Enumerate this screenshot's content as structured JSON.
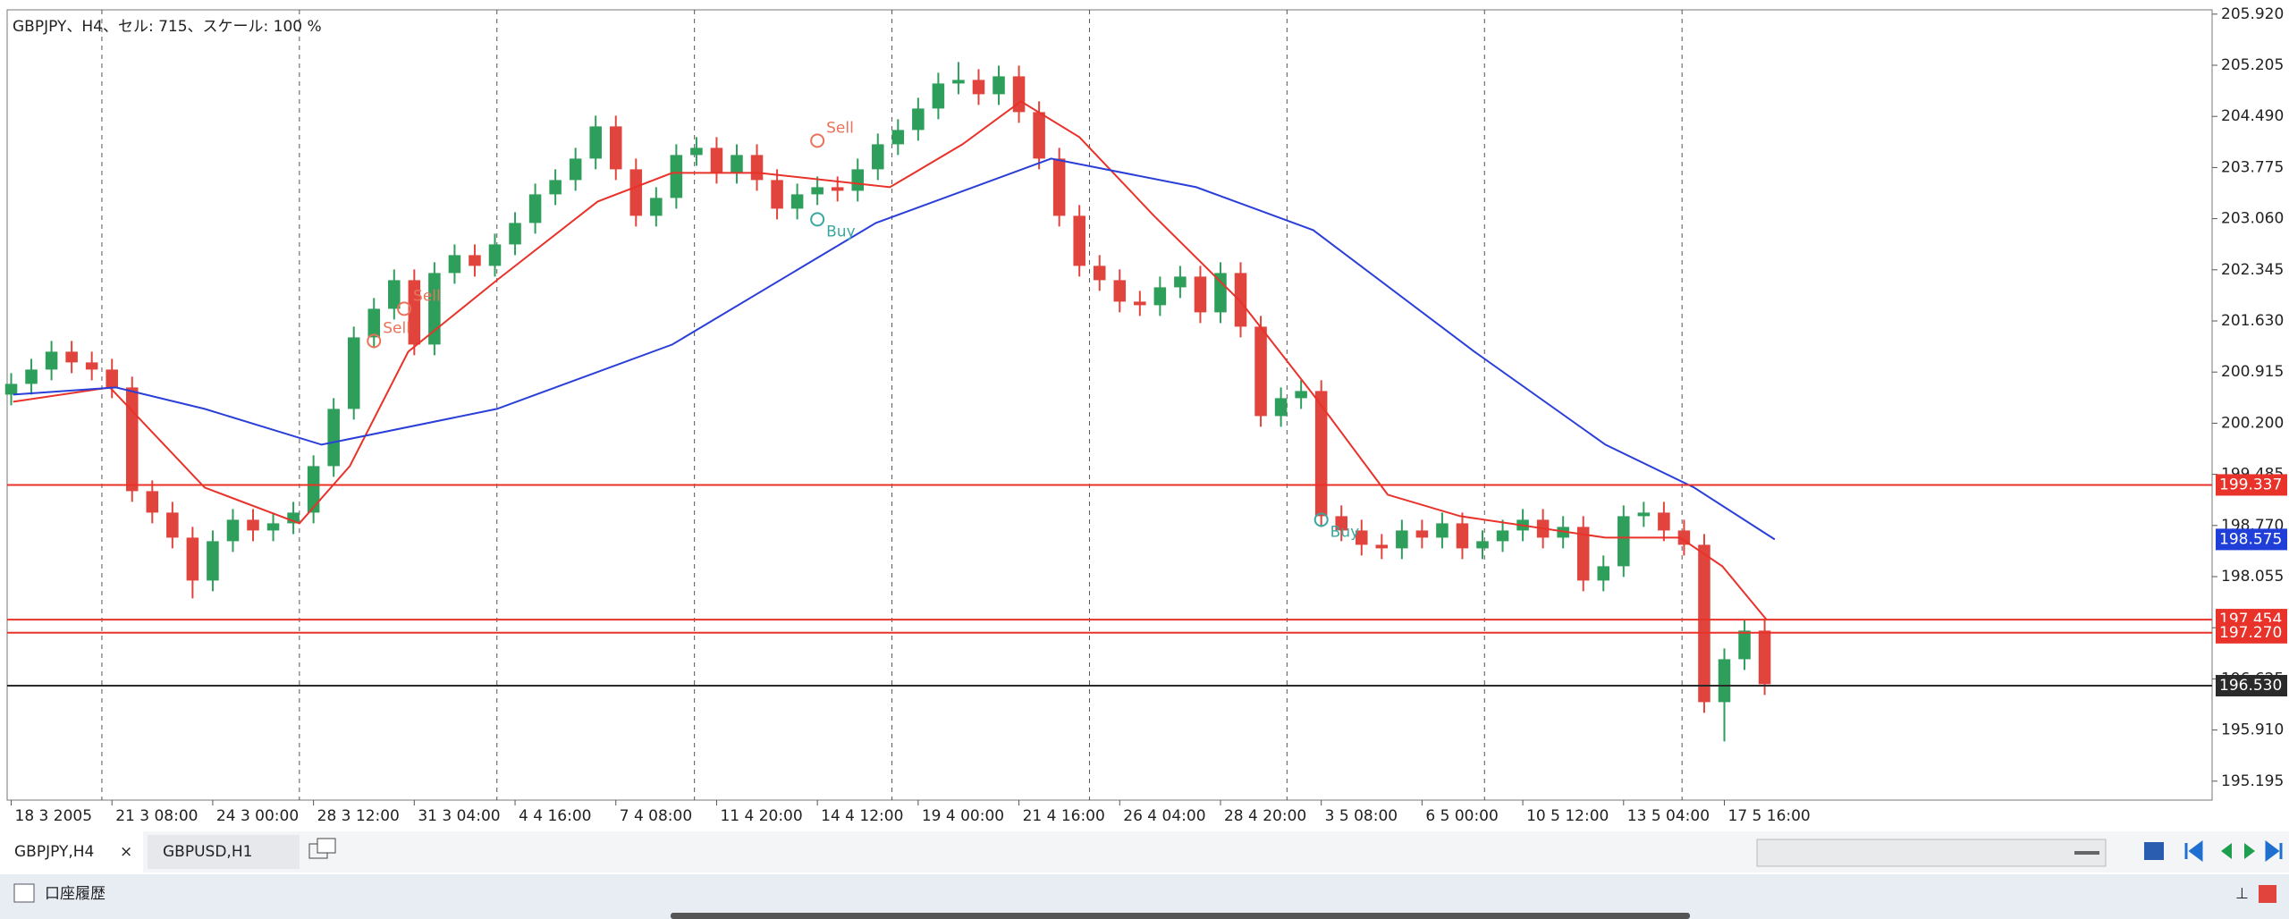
{
  "header": {
    "title": "GBPJPY、H4、セル: 715、スケール: 100 %"
  },
  "chart_data": {
    "type": "candlestick",
    "up_color": "#2e9e5b",
    "down_color": "#e0443c",
    "xlim": [
      -0.2,
      109.2
    ],
    "ylim": [
      194.93,
      205.98
    ],
    "yticks": [
      {
        "value": 205.92,
        "label": "205.920"
      },
      {
        "value": 205.205,
        "label": "205.205"
      },
      {
        "value": 204.49,
        "label": "204.490"
      },
      {
        "value": 203.775,
        "label": "203.775"
      },
      {
        "value": 203.06,
        "label": "203.060"
      },
      {
        "value": 202.345,
        "label": "202.345"
      },
      {
        "value": 201.63,
        "label": "201.630"
      },
      {
        "value": 200.915,
        "label": "200.915"
      },
      {
        "value": 200.2,
        "label": "200.200"
      },
      {
        "value": 199.485,
        "label": "199.485"
      },
      {
        "value": 198.77,
        "label": "198.770"
      },
      {
        "value": 198.055,
        "label": "198.055"
      },
      {
        "value": 197.34,
        "label": "197.340"
      },
      {
        "value": 196.625,
        "label": "196.625"
      },
      {
        "value": 195.91,
        "label": "195.910"
      },
      {
        "value": 195.195,
        "label": "195.195"
      }
    ],
    "xticks": [
      {
        "value": 0,
        "label": "18 3 2005"
      },
      {
        "value": 5,
        "label": "21 3 08:00"
      },
      {
        "value": 10,
        "label": "24 3 00:00"
      },
      {
        "value": 15,
        "label": "28 3 12:00"
      },
      {
        "value": 20,
        "label": "31 3 04:00"
      },
      {
        "value": 25,
        "label": "4 4 16:00"
      },
      {
        "value": 30,
        "label": "7 4 08:00"
      },
      {
        "value": 35,
        "label": "11 4 20:00"
      },
      {
        "value": 40,
        "label": "14 4 12:00"
      },
      {
        "value": 45,
        "label": "19 4 00:00"
      },
      {
        "value": 50,
        "label": "21 4 16:00"
      },
      {
        "value": 55,
        "label": "26 4 04:00"
      },
      {
        "value": 60,
        "label": "28 4 20:00"
      },
      {
        "value": 65,
        "label": "3 5 08:00"
      },
      {
        "value": 70,
        "label": "6 5 00:00"
      },
      {
        "value": 75,
        "label": "10 5 12:00"
      },
      {
        "value": 80,
        "label": "13 5 04:00"
      },
      {
        "value": 85,
        "label": "17 5 16:00"
      }
    ],
    "x_grid": [
      4.5,
      14.3,
      24.1,
      33.9,
      43.7,
      53.5,
      63.3,
      73.1,
      82.9
    ],
    "open": [
      200.6,
      200.75,
      200.95,
      201.2,
      201.05,
      200.95,
      200.7,
      199.25,
      198.95,
      198.6,
      198.0,
      198.55,
      198.85,
      198.7,
      198.8,
      198.95,
      199.6,
      200.4,
      201.4,
      201.8,
      202.2,
      201.3,
      202.3,
      202.55,
      202.4,
      202.7,
      203.0,
      203.4,
      203.6,
      203.9,
      204.35,
      203.75,
      203.1,
      203.35,
      203.95,
      204.05,
      203.7,
      203.95,
      203.6,
      203.2,
      203.4,
      203.5,
      203.45,
      203.75,
      204.1,
      204.3,
      204.6,
      204.95,
      205.0,
      204.8,
      205.05,
      204.55,
      203.9,
      203.1,
      202.4,
      202.2,
      201.9,
      201.85,
      202.1,
      202.25,
      201.75,
      202.3,
      201.55,
      200.3,
      200.55,
      200.65,
      198.9,
      198.7,
      198.5,
      198.45,
      198.7,
      198.6,
      198.8,
      198.45,
      198.55,
      198.7,
      198.85,
      198.6,
      198.75,
      198.0,
      198.2,
      198.9,
      198.95,
      198.7,
      198.5,
      196.3,
      196.9,
      197.3
    ],
    "high": [
      200.9,
      201.1,
      201.35,
      201.35,
      201.2,
      201.1,
      200.85,
      199.4,
      199.1,
      198.75,
      198.7,
      199.0,
      199.0,
      198.95,
      199.1,
      199.75,
      200.55,
      201.55,
      201.95,
      202.35,
      202.35,
      202.45,
      202.7,
      202.7,
      202.85,
      203.15,
      203.55,
      203.75,
      204.05,
      204.5,
      204.5,
      203.9,
      203.5,
      204.1,
      204.2,
      204.2,
      204.1,
      204.1,
      203.75,
      203.55,
      203.65,
      203.65,
      203.9,
      204.25,
      204.45,
      204.75,
      205.1,
      205.25,
      205.15,
      205.2,
      205.2,
      204.7,
      204.05,
      203.25,
      202.55,
      202.35,
      202.05,
      202.25,
      202.4,
      202.4,
      202.45,
      202.45,
      201.7,
      200.7,
      200.8,
      200.8,
      199.05,
      198.85,
      198.65,
      198.85,
      198.85,
      198.95,
      198.95,
      198.7,
      198.85,
      199.0,
      199.0,
      198.9,
      198.9,
      198.35,
      199.05,
      199.1,
      199.1,
      198.85,
      198.65,
      197.05,
      197.45,
      197.45
    ],
    "low": [
      200.45,
      200.6,
      200.8,
      200.9,
      200.8,
      200.55,
      199.1,
      198.8,
      198.45,
      197.75,
      197.85,
      198.4,
      198.55,
      198.55,
      198.65,
      198.8,
      199.45,
      200.25,
      201.25,
      201.65,
      201.15,
      201.15,
      202.15,
      202.25,
      202.25,
      202.55,
      202.85,
      203.25,
      203.45,
      203.75,
      203.6,
      202.95,
      202.95,
      203.2,
      203.8,
      203.55,
      203.55,
      203.45,
      203.05,
      203.05,
      203.25,
      203.3,
      203.3,
      203.6,
      203.95,
      204.15,
      204.45,
      204.8,
      204.65,
      204.65,
      204.4,
      203.75,
      202.95,
      202.25,
      202.05,
      201.75,
      201.7,
      201.7,
      201.95,
      201.6,
      201.6,
      201.4,
      200.15,
      200.15,
      200.4,
      198.75,
      198.55,
      198.35,
      198.3,
      198.3,
      198.45,
      198.45,
      198.3,
      198.3,
      198.4,
      198.55,
      198.45,
      198.45,
      197.85,
      197.85,
      198.05,
      198.75,
      198.55,
      198.35,
      196.15,
      195.75,
      196.75,
      196.4
    ],
    "close": [
      200.75,
      200.95,
      201.2,
      201.05,
      200.95,
      200.7,
      199.25,
      198.95,
      198.6,
      198.0,
      198.55,
      198.85,
      198.7,
      198.8,
      198.95,
      199.6,
      200.4,
      201.4,
      201.8,
      202.2,
      201.3,
      202.3,
      202.55,
      202.4,
      202.7,
      203.0,
      203.4,
      203.6,
      203.9,
      204.35,
      203.75,
      203.1,
      203.35,
      203.95,
      204.05,
      203.7,
      203.95,
      203.6,
      203.2,
      203.4,
      203.5,
      203.45,
      203.75,
      204.1,
      204.3,
      204.6,
      204.95,
      205.0,
      204.8,
      205.05,
      204.55,
      203.9,
      203.1,
      202.4,
      202.2,
      201.9,
      201.85,
      202.1,
      202.25,
      201.75,
      202.3,
      201.55,
      200.3,
      200.55,
      200.65,
      198.9,
      198.7,
      198.5,
      198.45,
      198.7,
      198.6,
      198.8,
      198.45,
      198.55,
      198.7,
      198.85,
      198.6,
      198.75,
      198.0,
      198.2,
      198.9,
      198.95,
      198.7,
      198.5,
      196.3,
      196.9,
      197.3,
      196.55
    ],
    "ma_lines": [
      {
        "color": "#e8322a",
        "x": [
          0.1,
          4.9,
          9.6,
          14.3,
          16.8,
          19.7,
          24.1,
          29.1,
          32.8,
          37.1,
          43.6,
          47.2,
          50.1,
          53.0,
          56.7,
          61.0,
          64.6,
          68.3,
          71.9,
          79.1,
          82.8,
          84.9,
          87.1
        ],
        "values": [
          200.5,
          200.7,
          199.3,
          198.8,
          199.6,
          201.2,
          202.2,
          203.3,
          203.7,
          203.7,
          203.5,
          204.1,
          204.7,
          204.2,
          203.1,
          201.9,
          200.6,
          199.2,
          198.9,
          198.6,
          198.6,
          198.2,
          197.45
        ]
      },
      {
        "color": "#2a3fd8",
        "x": [
          0.1,
          5.2,
          9.6,
          15.4,
          24.1,
          32.8,
          42.9,
          51.6,
          58.8,
          64.6,
          72.6,
          79.1,
          83.5,
          87.5
        ],
        "values": [
          200.6,
          200.7,
          200.4,
          199.9,
          200.4,
          201.3,
          203.0,
          203.9,
          203.5,
          202.9,
          201.2,
          199.9,
          199.3,
          198.575
        ]
      }
    ],
    "levels": [
      {
        "value": 199.337,
        "label": "199.337",
        "color": "#e8322a"
      },
      {
        "value": 198.575,
        "label": "198.575",
        "color": "#1f3fd8"
      },
      {
        "value": 197.454,
        "label": "197.454",
        "color": "#e8322a"
      },
      {
        "value": 197.27,
        "label": "197.270",
        "color": "#e8322a"
      },
      {
        "value": 196.53,
        "label": "196.530",
        "color": "#2a2a2a"
      }
    ],
    "annotations": [
      {
        "text": "Sell",
        "x": 40,
        "y": 204.15,
        "color": "#e8735a"
      },
      {
        "text": "Buy",
        "x": 40,
        "y": 203.05,
        "color": "#3aa8a0"
      },
      {
        "text": "Sell",
        "x": 19.5,
        "y": 201.8,
        "color": "#e8735a"
      },
      {
        "text": "Sell",
        "x": 18,
        "y": 201.35,
        "color": "#e8735a"
      },
      {
        "text": "Buy",
        "x": 65,
        "y": 198.85,
        "color": "#3aa8a0"
      }
    ]
  },
  "tabs": {
    "items": [
      "GBPJPY,H4",
      "GBPUSD,H1"
    ],
    "close": "×"
  },
  "panel": {
    "title": "口座履歴"
  }
}
